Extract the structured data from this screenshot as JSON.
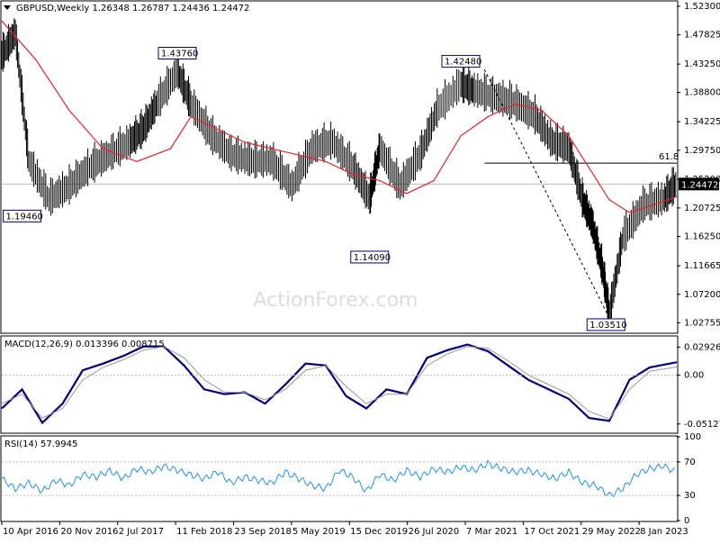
{
  "header": {
    "price_title": "GBPUSD,Weekly  1.26348 1.26787 1.24436 1.24472",
    "macd_title": "MACD(12,26,9) 0.013396 0.008715",
    "rsi_title": "RSI(14) 57.9945"
  },
  "watermark": "ActionForex.com",
  "colors": {
    "price_bar": "#000000",
    "moving_average": "#e8232a",
    "macd_line": "#000080",
    "signal_line": "#999999",
    "rsi_line": "#1e90ff",
    "grid_line": "#777777",
    "box_border": "#000080"
  },
  "chart_data": [
    {
      "type": "line",
      "panel": "price",
      "title": "GBPUSD,Weekly",
      "ohlc_last": {
        "open": 1.26348,
        "high": 1.26787,
        "low": 1.24436,
        "close": 1.24472
      },
      "y_ticks": [
        "1.52300",
        "1.47825",
        "1.43250",
        "1.38800",
        "1.34225",
        "1.29750",
        "1.25200",
        "1.20725",
        "1.16250",
        "1.11665",
        "1.07200",
        "1.02755"
      ],
      "ylim": [
        1.0125,
        1.53
      ],
      "x_ticks": [
        "10 Apr 2016",
        "20 Nov 2016",
        "2 Jul 2017",
        "11 Feb 2018",
        "23 Sep 2018",
        "5 May 2019",
        "15 Dec 2019",
        "26 Jul 2020",
        "7 Mar 2021",
        "17 Oct 2021",
        "29 May 2022",
        "8 Jan 2023"
      ],
      "current_price_label": "1.24472",
      "fib_level_label": "61.8",
      "fib_level_price": 1.2775,
      "annotations": [
        {
          "text": "1.43760",
          "x": 0.26,
          "price": 1.4376
        },
        {
          "text": "1.42480",
          "x": 0.68,
          "price": 1.4248
        },
        {
          "text": "1.19460",
          "x": 0.045,
          "price": 1.1946
        },
        {
          "text": "1.14090",
          "x": 0.545,
          "price": 1.1409
        },
        {
          "text": "1.03510",
          "x": 0.895,
          "price": 1.0351
        }
      ],
      "series": [
        {
          "name": "Price",
          "x": [
            0,
            0.02,
            0.04,
            0.07,
            0.1,
            0.13,
            0.16,
            0.19,
            0.21,
            0.23,
            0.26,
            0.28,
            0.31,
            0.34,
            0.37,
            0.4,
            0.43,
            0.46,
            0.49,
            0.52,
            0.545,
            0.56,
            0.59,
            0.62,
            0.645,
            0.68,
            0.7,
            0.73,
            0.76,
            0.79,
            0.815,
            0.84,
            0.86,
            0.875,
            0.89,
            0.9,
            0.92,
            0.95,
            0.98,
            1.0
          ],
          "values": [
            1.445,
            1.48,
            1.28,
            1.22,
            1.24,
            1.27,
            1.29,
            1.31,
            1.33,
            1.37,
            1.42,
            1.37,
            1.32,
            1.29,
            1.28,
            1.28,
            1.24,
            1.3,
            1.31,
            1.27,
            1.22,
            1.3,
            1.24,
            1.29,
            1.36,
            1.4,
            1.39,
            1.38,
            1.37,
            1.35,
            1.31,
            1.3,
            1.22,
            1.18,
            1.11,
            1.04,
            1.16,
            1.21,
            1.22,
            1.245
          ]
        },
        {
          "name": "MA",
          "x": [
            0,
            0.05,
            0.1,
            0.15,
            0.2,
            0.25,
            0.28,
            0.32,
            0.36,
            0.4,
            0.44,
            0.48,
            0.52,
            0.56,
            0.6,
            0.64,
            0.68,
            0.72,
            0.76,
            0.8,
            0.84,
            0.87,
            0.9,
            0.93,
            0.96,
            1.0
          ],
          "values": [
            1.5,
            1.44,
            1.36,
            1.3,
            1.28,
            1.3,
            1.35,
            1.33,
            1.31,
            1.3,
            1.29,
            1.28,
            1.26,
            1.25,
            1.23,
            1.25,
            1.32,
            1.35,
            1.37,
            1.36,
            1.32,
            1.27,
            1.22,
            1.2,
            1.21,
            1.225
          ]
        }
      ]
    },
    {
      "type": "line",
      "panel": "macd",
      "title": "MACD(12,26,9)",
      "y_ticks": [
        "0.029261",
        "0.00",
        "-0.051279"
      ],
      "ylim": [
        -0.06,
        0.04
      ],
      "series": [
        {
          "name": "MACD",
          "x": [
            0,
            0.03,
            0.06,
            0.09,
            0.12,
            0.15,
            0.18,
            0.21,
            0.24,
            0.27,
            0.3,
            0.33,
            0.36,
            0.39,
            0.42,
            0.45,
            0.48,
            0.51,
            0.54,
            0.57,
            0.6,
            0.63,
            0.66,
            0.69,
            0.72,
            0.75,
            0.78,
            0.81,
            0.84,
            0.87,
            0.9,
            0.93,
            0.96,
            1.0
          ],
          "values": [
            -0.035,
            -0.015,
            -0.05,
            -0.03,
            0.005,
            0.012,
            0.02,
            0.03,
            0.03,
            0.01,
            -0.015,
            -0.02,
            -0.018,
            -0.03,
            -0.01,
            0.012,
            0.01,
            -0.022,
            -0.035,
            -0.015,
            -0.02,
            0.018,
            0.026,
            0.032,
            0.025,
            0.01,
            -0.005,
            -0.015,
            -0.025,
            -0.045,
            -0.048,
            -0.005,
            0.008,
            0.0134
          ]
        },
        {
          "name": "Signal",
          "x": [
            0,
            0.03,
            0.06,
            0.09,
            0.12,
            0.15,
            0.18,
            0.21,
            0.24,
            0.27,
            0.3,
            0.33,
            0.36,
            0.39,
            0.42,
            0.45,
            0.48,
            0.51,
            0.54,
            0.57,
            0.6,
            0.63,
            0.66,
            0.69,
            0.72,
            0.75,
            0.78,
            0.81,
            0.84,
            0.87,
            0.9,
            0.93,
            0.96,
            1.0
          ],
          "values": [
            -0.03,
            -0.02,
            -0.045,
            -0.035,
            -0.005,
            0.008,
            0.016,
            0.026,
            0.03,
            0.018,
            -0.005,
            -0.018,
            -0.018,
            -0.026,
            -0.015,
            0.005,
            0.01,
            -0.012,
            -0.03,
            -0.02,
            -0.02,
            0.01,
            0.022,
            0.03,
            0.028,
            0.015,
            0.0,
            -0.01,
            -0.02,
            -0.038,
            -0.046,
            -0.015,
            0.004,
            0.0087
          ]
        }
      ]
    },
    {
      "type": "line",
      "panel": "rsi",
      "title": "RSI(14)",
      "y_ticks": [
        "100",
        "70",
        "30",
        "0"
      ],
      "ylim": [
        0,
        100
      ],
      "series": [
        {
          "name": "RSI",
          "x": [
            0,
            0.02,
            0.04,
            0.06,
            0.08,
            0.1,
            0.12,
            0.14,
            0.16,
            0.18,
            0.2,
            0.22,
            0.24,
            0.26,
            0.28,
            0.3,
            0.32,
            0.34,
            0.36,
            0.38,
            0.4,
            0.42,
            0.44,
            0.46,
            0.48,
            0.5,
            0.52,
            0.54,
            0.56,
            0.58,
            0.6,
            0.62,
            0.64,
            0.66,
            0.68,
            0.7,
            0.72,
            0.74,
            0.76,
            0.78,
            0.8,
            0.82,
            0.84,
            0.86,
            0.88,
            0.9,
            0.92,
            0.94,
            0.96,
            0.98,
            1.0
          ],
          "values": [
            50,
            38,
            45,
            35,
            48,
            42,
            55,
            52,
            60,
            50,
            62,
            58,
            65,
            60,
            55,
            50,
            58,
            45,
            52,
            48,
            45,
            58,
            50,
            42,
            38,
            60,
            52,
            35,
            55,
            48,
            60,
            52,
            62,
            58,
            64,
            60,
            68,
            62,
            58,
            60,
            55,
            50,
            58,
            45,
            42,
            30,
            38,
            55,
            62,
            65,
            58
          ]
        }
      ]
    }
  ]
}
